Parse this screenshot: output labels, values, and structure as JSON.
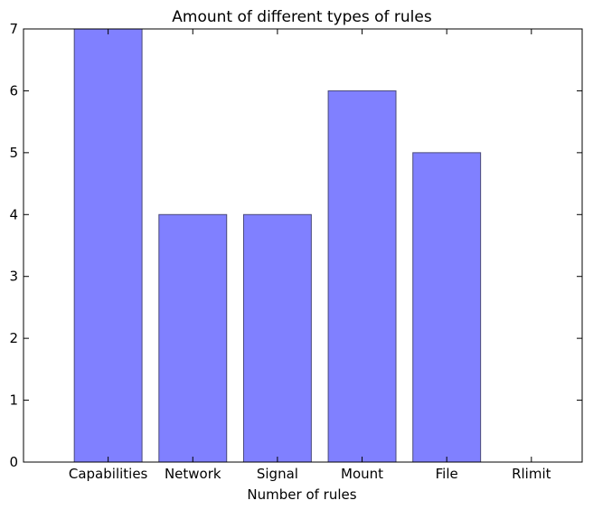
{
  "chart_data": {
    "type": "bar",
    "title": "Amount of different types of rules",
    "xlabel": "Number of rules",
    "ylabel": "",
    "categories": [
      "Capabilities",
      "Network",
      "Signal",
      "Mount",
      "File",
      "Rlimit"
    ],
    "values": [
      7,
      4,
      4,
      6,
      5,
      0
    ],
    "ylim": [
      0,
      7
    ],
    "yticks": [
      0,
      1,
      2,
      3,
      4,
      5,
      6,
      7
    ],
    "grid": false,
    "colors": {
      "bar_fill": "#8080ff",
      "bar_edge": "#4a4a7a",
      "axes": "#000000"
    }
  }
}
